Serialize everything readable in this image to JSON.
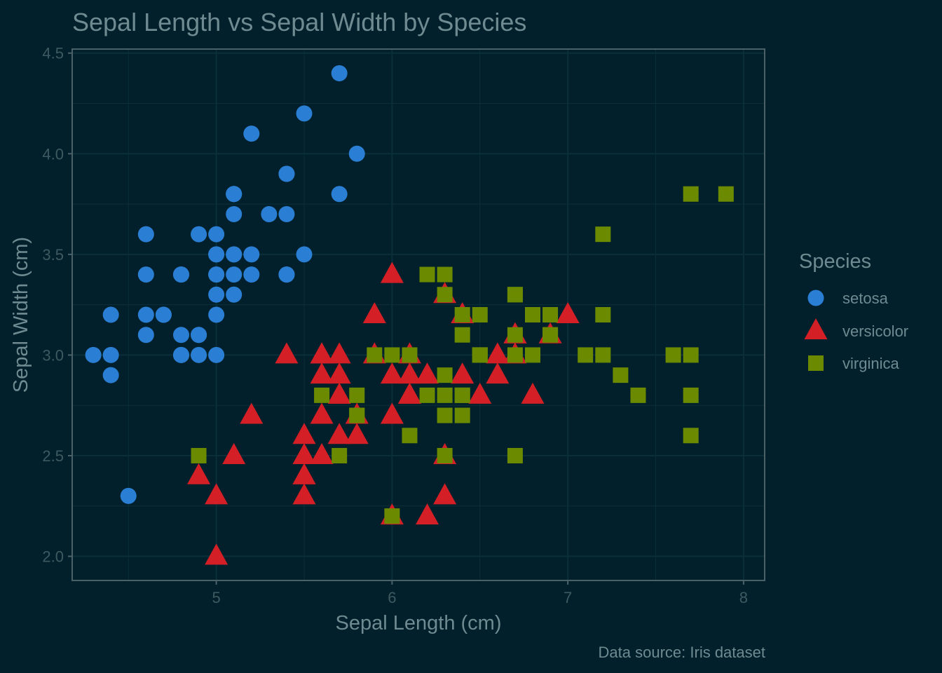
{
  "chart_data": {
    "type": "scatter",
    "title": "Sepal Length vs Sepal Width by Species",
    "xlabel": "Sepal Length (cm)",
    "ylabel": "Sepal Width (cm)",
    "caption": "Data source: Iris dataset",
    "xlim": [
      4.18,
      8.12
    ],
    "ylim": [
      1.88,
      4.52
    ],
    "x_ticks": [
      "5",
      "6",
      "7",
      "8"
    ],
    "y_ticks": [
      "2.0",
      "2.5",
      "3.0",
      "3.5",
      "4.0",
      "4.5"
    ],
    "grid": true,
    "legend": {
      "title": "Species",
      "position": "right"
    },
    "colors": {
      "background": "#01202b",
      "grid": "#0b2f3a",
      "text": "#6f8a91",
      "tick_text": "#3f5960",
      "axis": "#4a6168"
    },
    "series": [
      {
        "name": "setosa",
        "shape": "circle",
        "color": "#2a7fd4",
        "points": [
          [
            5.1,
            3.5
          ],
          [
            4.9,
            3.0
          ],
          [
            4.7,
            3.2
          ],
          [
            4.6,
            3.1
          ],
          [
            5.0,
            3.6
          ],
          [
            5.4,
            3.9
          ],
          [
            4.6,
            3.4
          ],
          [
            5.0,
            3.4
          ],
          [
            4.4,
            2.9
          ],
          [
            4.9,
            3.1
          ],
          [
            5.4,
            3.7
          ],
          [
            4.8,
            3.4
          ],
          [
            4.8,
            3.0
          ],
          [
            4.3,
            3.0
          ],
          [
            5.8,
            4.0
          ],
          [
            5.7,
            4.4
          ],
          [
            5.4,
            3.9
          ],
          [
            5.1,
            3.5
          ],
          [
            5.7,
            3.8
          ],
          [
            5.1,
            3.8
          ],
          [
            5.4,
            3.4
          ],
          [
            5.1,
            3.7
          ],
          [
            4.6,
            3.6
          ],
          [
            5.1,
            3.3
          ],
          [
            4.8,
            3.4
          ],
          [
            5.0,
            3.0
          ],
          [
            5.0,
            3.4
          ],
          [
            5.2,
            3.5
          ],
          [
            5.2,
            3.4
          ],
          [
            4.7,
            3.2
          ],
          [
            4.8,
            3.1
          ],
          [
            5.4,
            3.4
          ],
          [
            5.2,
            4.1
          ],
          [
            5.5,
            4.2
          ],
          [
            4.9,
            3.1
          ],
          [
            5.0,
            3.2
          ],
          [
            5.5,
            3.5
          ],
          [
            4.9,
            3.6
          ],
          [
            4.4,
            3.0
          ],
          [
            5.1,
            3.4
          ],
          [
            5.0,
            3.5
          ],
          [
            4.5,
            2.3
          ],
          [
            4.4,
            3.2
          ],
          [
            5.0,
            3.5
          ],
          [
            5.1,
            3.8
          ],
          [
            4.8,
            3.0
          ],
          [
            5.1,
            3.8
          ],
          [
            4.6,
            3.2
          ],
          [
            5.3,
            3.7
          ],
          [
            5.0,
            3.3
          ]
        ]
      },
      {
        "name": "versicolor",
        "shape": "triangle",
        "color": "#d41f26",
        "points": [
          [
            7.0,
            3.2
          ],
          [
            6.4,
            3.2
          ],
          [
            6.9,
            3.1
          ],
          [
            5.5,
            2.3
          ],
          [
            6.5,
            2.8
          ],
          [
            5.7,
            2.8
          ],
          [
            6.3,
            3.3
          ],
          [
            4.9,
            2.4
          ],
          [
            6.6,
            2.9
          ],
          [
            5.2,
            2.7
          ],
          [
            5.0,
            2.0
          ],
          [
            5.9,
            3.0
          ],
          [
            6.0,
            2.2
          ],
          [
            6.1,
            2.9
          ],
          [
            5.6,
            2.9
          ],
          [
            6.7,
            3.1
          ],
          [
            5.6,
            3.0
          ],
          [
            5.8,
            2.7
          ],
          [
            6.2,
            2.2
          ],
          [
            5.6,
            2.5
          ],
          [
            5.9,
            3.2
          ],
          [
            6.1,
            2.8
          ],
          [
            6.3,
            2.5
          ],
          [
            6.1,
            2.8
          ],
          [
            6.4,
            2.9
          ],
          [
            6.6,
            3.0
          ],
          [
            6.8,
            2.8
          ],
          [
            6.7,
            3.0
          ],
          [
            6.0,
            2.9
          ],
          [
            5.7,
            2.6
          ],
          [
            5.5,
            2.4
          ],
          [
            5.5,
            2.4
          ],
          [
            5.8,
            2.7
          ],
          [
            6.0,
            2.7
          ],
          [
            5.4,
            3.0
          ],
          [
            6.0,
            3.4
          ],
          [
            6.7,
            3.1
          ],
          [
            6.3,
            2.3
          ],
          [
            5.6,
            3.0
          ],
          [
            5.5,
            2.5
          ],
          [
            5.5,
            2.6
          ],
          [
            6.1,
            3.0
          ],
          [
            5.8,
            2.6
          ],
          [
            5.0,
            2.3
          ],
          [
            5.6,
            2.7
          ],
          [
            5.7,
            3.0
          ],
          [
            5.7,
            2.9
          ],
          [
            6.2,
            2.9
          ],
          [
            5.1,
            2.5
          ],
          [
            5.7,
            2.8
          ]
        ]
      },
      {
        "name": "virginica",
        "shape": "square",
        "color": "#6b8a00",
        "points": [
          [
            6.3,
            3.3
          ],
          [
            5.8,
            2.7
          ],
          [
            7.1,
            3.0
          ],
          [
            6.3,
            2.9
          ],
          [
            6.5,
            3.0
          ],
          [
            7.6,
            3.0
          ],
          [
            4.9,
            2.5
          ],
          [
            7.3,
            2.9
          ],
          [
            6.7,
            2.5
          ],
          [
            7.2,
            3.6
          ],
          [
            6.5,
            3.2
          ],
          [
            6.4,
            2.7
          ],
          [
            6.8,
            3.0
          ],
          [
            5.7,
            2.5
          ],
          [
            5.8,
            2.8
          ],
          [
            6.4,
            3.2
          ],
          [
            6.5,
            3.0
          ],
          [
            7.7,
            3.8
          ],
          [
            7.7,
            2.6
          ],
          [
            6.0,
            2.2
          ],
          [
            6.9,
            3.2
          ],
          [
            5.6,
            2.8
          ],
          [
            7.7,
            2.8
          ],
          [
            6.3,
            2.7
          ],
          [
            6.7,
            3.3
          ],
          [
            7.2,
            3.2
          ],
          [
            6.2,
            2.8
          ],
          [
            6.1,
            3.0
          ],
          [
            6.4,
            2.8
          ],
          [
            7.2,
            3.0
          ],
          [
            7.4,
            2.8
          ],
          [
            7.9,
            3.8
          ],
          [
            6.4,
            2.8
          ],
          [
            6.3,
            2.8
          ],
          [
            6.1,
            2.6
          ],
          [
            7.7,
            3.0
          ],
          [
            6.3,
            3.4
          ],
          [
            6.4,
            3.1
          ],
          [
            6.0,
            3.0
          ],
          [
            6.9,
            3.1
          ],
          [
            6.7,
            3.1
          ],
          [
            6.9,
            3.1
          ],
          [
            5.8,
            2.7
          ],
          [
            6.8,
            3.2
          ],
          [
            6.7,
            3.3
          ],
          [
            6.7,
            3.0
          ],
          [
            6.3,
            2.5
          ],
          [
            6.5,
            3.0
          ],
          [
            6.2,
            3.4
          ],
          [
            5.9,
            3.0
          ]
        ]
      }
    ]
  }
}
